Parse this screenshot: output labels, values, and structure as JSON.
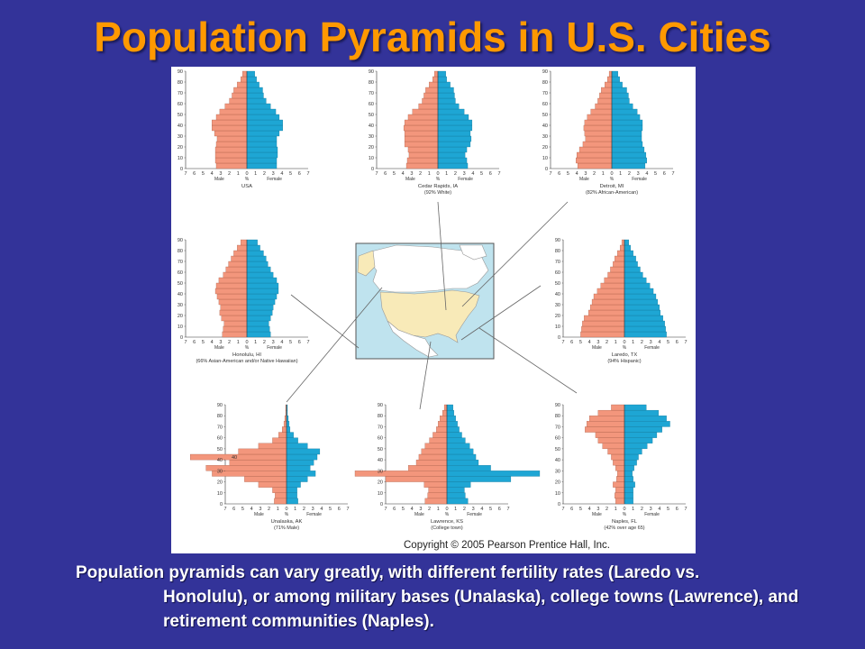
{
  "title": "Population Pyramids in U.S. Cities",
  "caption": {
    "line1": "Population pyramids can vary greatly, with different fertility rates (Laredo vs.",
    "line2": "Honolulu), or among military bases (Unalaska), college towns (Lawrence), and retirement communities (Naples)."
  },
  "figure": {
    "copyright": "Copyright © 2005 Pearson Prentice Hall, Inc.",
    "colors": {
      "male": "#f3967c",
      "female": "#1ea6d4",
      "map_water": "#bfe3ee",
      "map_us": "#f8eab8",
      "map_other": "#ffffff"
    }
  },
  "chart_data": [
    {
      "type": "bar",
      "subtype": "population-pyramid",
      "title": "USA",
      "subtitle": "",
      "xlabel": "%",
      "left_label": "Male",
      "right_label": "Female",
      "x_ticks": [
        "7",
        "6",
        "5",
        "4",
        "3",
        "2",
        "1",
        "0",
        "1",
        "2",
        "3",
        "4",
        "5",
        "6",
        "7"
      ],
      "y_ticks": [
        "0",
        "10",
        "20",
        "30",
        "40",
        "50",
        "60",
        "70",
        "80",
        "90"
      ],
      "ylim": [
        0,
        90
      ],
      "xlim": [
        -7,
        7
      ],
      "categories": [
        "0-4",
        "5-9",
        "10-14",
        "15-19",
        "20-24",
        "25-29",
        "30-34",
        "35-39",
        "40-44",
        "45-49",
        "50-54",
        "55-59",
        "60-64",
        "65-69",
        "70-74",
        "75-79",
        "80-84",
        "85+"
      ],
      "series": [
        {
          "name": "Male",
          "values": [
            3.5,
            3.6,
            3.6,
            3.6,
            3.5,
            3.4,
            3.7,
            4.0,
            4.0,
            3.5,
            3.1,
            2.5,
            2.0,
            1.7,
            1.5,
            1.1,
            0.7,
            0.5
          ]
        },
        {
          "name": "Female",
          "values": [
            3.4,
            3.4,
            3.5,
            3.5,
            3.4,
            3.4,
            3.7,
            4.1,
            4.1,
            3.7,
            3.3,
            2.7,
            2.2,
            1.9,
            1.8,
            1.4,
            1.1,
            0.9
          ]
        }
      ]
    },
    {
      "type": "bar",
      "subtype": "population-pyramid",
      "title": "Cedar Rapids, IA",
      "subtitle": "(92% White)",
      "xlabel": "%",
      "left_label": "Male",
      "right_label": "Female",
      "x_ticks": [
        "7",
        "6",
        "5",
        "4",
        "3",
        "2",
        "1",
        "0",
        "1",
        "2",
        "3",
        "4",
        "5",
        "6",
        "7"
      ],
      "y_ticks": [
        "0",
        "10",
        "20",
        "30",
        "40",
        "50",
        "60",
        "70",
        "80",
        "90"
      ],
      "ylim": [
        0,
        90
      ],
      "xlim": [
        -7,
        7
      ],
      "categories": [
        "0-4",
        "5-9",
        "10-14",
        "15-19",
        "20-24",
        "25-29",
        "30-34",
        "35-39",
        "40-44",
        "45-49",
        "50-54",
        "55-59",
        "60-64",
        "65-69",
        "70-74",
        "75-79",
        "80-84",
        "85+"
      ],
      "series": [
        {
          "name": "Male",
          "values": [
            3.6,
            3.5,
            3.3,
            3.4,
            3.8,
            3.8,
            3.8,
            3.9,
            3.8,
            3.4,
            2.9,
            2.2,
            1.8,
            1.6,
            1.4,
            1.0,
            0.6,
            0.4
          ]
        },
        {
          "name": "Female",
          "values": [
            3.4,
            3.3,
            3.1,
            3.3,
            3.7,
            3.8,
            3.7,
            3.9,
            3.9,
            3.5,
            3.0,
            2.4,
            2.0,
            1.9,
            1.8,
            1.4,
            1.0,
            0.9
          ]
        }
      ]
    },
    {
      "type": "bar",
      "subtype": "population-pyramid",
      "title": "Detroit, MI",
      "subtitle": "(82% African-American)",
      "xlabel": "%",
      "left_label": "Male",
      "right_label": "Female",
      "x_ticks": [
        "7",
        "6",
        "5",
        "4",
        "3",
        "2",
        "1",
        "0",
        "1",
        "2",
        "3",
        "4",
        "5",
        "6",
        "7"
      ],
      "y_ticks": [
        "0",
        "10",
        "20",
        "30",
        "40",
        "50",
        "60",
        "70",
        "80",
        "90"
      ],
      "ylim": [
        0,
        90
      ],
      "xlim": [
        -7,
        7
      ],
      "categories": [
        "0-4",
        "5-9",
        "10-14",
        "15-19",
        "20-24",
        "25-29",
        "30-34",
        "35-39",
        "40-44",
        "45-49",
        "50-54",
        "55-59",
        "60-64",
        "65-69",
        "70-74",
        "75-79",
        "80-84",
        "85+"
      ],
      "series": [
        {
          "name": "Male",
          "values": [
            3.9,
            4.1,
            4.0,
            3.7,
            3.3,
            3.0,
            3.1,
            3.2,
            3.1,
            2.8,
            2.4,
            1.9,
            1.6,
            1.4,
            1.2,
            0.8,
            0.5,
            0.3
          ]
        },
        {
          "name": "Female",
          "values": [
            3.8,
            4.0,
            3.9,
            3.7,
            3.5,
            3.4,
            3.4,
            3.5,
            3.5,
            3.2,
            2.9,
            2.4,
            2.0,
            1.9,
            1.7,
            1.2,
            0.9,
            0.7
          ]
        }
      ]
    },
    {
      "type": "bar",
      "subtype": "population-pyramid",
      "title": "Honolulu, HI",
      "subtitle": "(66% Asian-American and/or Native Hawaiian)",
      "xlabel": "%",
      "left_label": "Male",
      "right_label": "Female",
      "x_ticks": [
        "7",
        "6",
        "5",
        "4",
        "3",
        "2",
        "1",
        "0",
        "1",
        "2",
        "3",
        "4",
        "5",
        "6",
        "7"
      ],
      "y_ticks": [
        "0",
        "10",
        "20",
        "30",
        "40",
        "50",
        "60",
        "70",
        "80",
        "90"
      ],
      "ylim": [
        0,
        90
      ],
      "xlim": [
        -7,
        7
      ],
      "categories": [
        "0-4",
        "5-9",
        "10-14",
        "15-19",
        "20-24",
        "25-29",
        "30-34",
        "35-39",
        "40-44",
        "45-49",
        "50-54",
        "55-59",
        "60-64",
        "65-69",
        "70-74",
        "75-79",
        "80-84",
        "85+"
      ],
      "series": [
        {
          "name": "Male",
          "values": [
            2.8,
            2.7,
            2.6,
            2.9,
            3.1,
            3.0,
            3.2,
            3.4,
            3.6,
            3.5,
            3.2,
            2.7,
            2.4,
            2.1,
            1.8,
            1.5,
            1.1,
            0.7
          ]
        },
        {
          "name": "Female",
          "values": [
            2.7,
            2.6,
            2.5,
            2.7,
            2.9,
            3.0,
            3.2,
            3.4,
            3.6,
            3.6,
            3.4,
            3.0,
            2.7,
            2.4,
            2.2,
            1.9,
            1.5,
            1.2
          ]
        }
      ]
    },
    {
      "type": "bar",
      "subtype": "population-pyramid",
      "title": "Laredo, TX",
      "subtitle": "(94% Hispanic)",
      "xlabel": "%",
      "left_label": "Male",
      "right_label": "Female",
      "x_ticks": [
        "7",
        "6",
        "5",
        "4",
        "3",
        "2",
        "1",
        "0",
        "1",
        "2",
        "3",
        "4",
        "5",
        "6",
        "7"
      ],
      "y_ticks": [
        "0",
        "10",
        "20",
        "30",
        "40",
        "50",
        "60",
        "70",
        "80",
        "90"
      ],
      "ylim": [
        0,
        90
      ],
      "xlim": [
        -7,
        7
      ],
      "categories": [
        "0-4",
        "5-9",
        "10-14",
        "15-19",
        "20-24",
        "25-29",
        "30-34",
        "35-39",
        "40-44",
        "45-49",
        "50-54",
        "55-59",
        "60-64",
        "65-69",
        "70-74",
        "75-79",
        "80-84",
        "85+"
      ],
      "series": [
        {
          "name": "Male",
          "values": [
            5.0,
            4.9,
            4.8,
            4.6,
            4.1,
            3.9,
            3.7,
            3.5,
            3.1,
            2.7,
            2.3,
            1.9,
            1.6,
            1.3,
            1.1,
            0.8,
            0.5,
            0.3
          ]
        },
        {
          "name": "Female",
          "values": [
            4.8,
            4.7,
            4.6,
            4.4,
            4.1,
            4.0,
            3.8,
            3.6,
            3.3,
            2.9,
            2.5,
            2.1,
            1.8,
            1.5,
            1.3,
            1.0,
            0.7,
            0.5
          ]
        }
      ]
    },
    {
      "type": "bar",
      "subtype": "population-pyramid",
      "title": "Unalaska, AK",
      "subtitle": "(71% Male)",
      "annotation": "40",
      "xlabel": "%",
      "left_label": "Male",
      "right_label": "Female",
      "x_ticks": [
        "7",
        "6",
        "5",
        "4",
        "3",
        "2",
        "1",
        "0",
        "1",
        "2",
        "3",
        "4",
        "5",
        "6",
        "7"
      ],
      "y_ticks": [
        "0",
        "10",
        "20",
        "30",
        "40",
        "50",
        "60",
        "70",
        "80",
        "90"
      ],
      "ylim": [
        0,
        90
      ],
      "xlim": [
        -7,
        7
      ],
      "categories": [
        "0-4",
        "5-9",
        "10-14",
        "15-19",
        "20-24",
        "25-29",
        "30-34",
        "35-39",
        "40-44",
        "45-49",
        "50-54",
        "55-59",
        "60-64",
        "65-69",
        "70-74",
        "75-79",
        "80-84",
        "85+"
      ],
      "series": [
        {
          "name": "Male",
          "values": [
            1.4,
            1.3,
            1.6,
            3.2,
            4.8,
            8.5,
            9.2,
            6.5,
            11.0,
            5.5,
            3.2,
            1.6,
            0.9,
            0.5,
            0.3,
            0.2,
            0.1,
            0.1
          ]
        },
        {
          "name": "Female",
          "values": [
            1.3,
            1.2,
            1.2,
            1.6,
            2.4,
            3.3,
            2.7,
            3.1,
            3.5,
            3.8,
            2.4,
            1.3,
            0.8,
            0.4,
            0.3,
            0.2,
            0.1,
            0.1
          ]
        }
      ]
    },
    {
      "type": "bar",
      "subtype": "population-pyramid",
      "title": "Lawrence, KS",
      "subtitle": "(College town)",
      "xlabel": "%",
      "left_label": "Male",
      "right_label": "Female",
      "x_ticks": [
        "7",
        "6",
        "5",
        "4",
        "3",
        "2",
        "1",
        "0",
        "1",
        "2",
        "3",
        "4",
        "5",
        "6",
        "7"
      ],
      "y_ticks": [
        "0",
        "10",
        "20",
        "30",
        "40",
        "50",
        "60",
        "70",
        "80",
        "90"
      ],
      "ylim": [
        0,
        90
      ],
      "xlim": [
        -7,
        7
      ],
      "categories": [
        "0-4",
        "5-9",
        "10-14",
        "15-19",
        "20-24",
        "25-29",
        "30-34",
        "35-39",
        "40-44",
        "45-49",
        "50-54",
        "55-59",
        "60-64",
        "65-69",
        "70-74",
        "75-79",
        "80-84",
        "85+"
      ],
      "series": [
        {
          "name": "Male",
          "values": [
            2.5,
            2.2,
            2.1,
            2.6,
            7.0,
            10.5,
            4.4,
            3.5,
            3.2,
            2.9,
            2.5,
            2.0,
            1.6,
            1.2,
            1.0,
            0.8,
            0.5,
            0.3
          ]
        },
        {
          "name": "Female",
          "values": [
            2.4,
            2.1,
            2.0,
            2.7,
            7.3,
            10.6,
            5.0,
            3.6,
            3.3,
            3.0,
            2.6,
            2.1,
            1.7,
            1.4,
            1.2,
            1.0,
            0.8,
            0.7
          ]
        }
      ]
    },
    {
      "type": "bar",
      "subtype": "population-pyramid",
      "title": "Naples, FL",
      "subtitle": "(42% over age 65)",
      "xlabel": "%",
      "left_label": "Male",
      "right_label": "Female",
      "x_ticks": [
        "7",
        "6",
        "5",
        "4",
        "3",
        "2",
        "1",
        "0",
        "1",
        "2",
        "3",
        "4",
        "5",
        "6",
        "7"
      ],
      "y_ticks": [
        "0",
        "10",
        "20",
        "30",
        "40",
        "50",
        "60",
        "70",
        "80",
        "90"
      ],
      "ylim": [
        0,
        90
      ],
      "xlim": [
        -7,
        7
      ],
      "categories": [
        "0-4",
        "5-9",
        "10-14",
        "15-19",
        "20-24",
        "25-29",
        "30-34",
        "35-39",
        "40-44",
        "45-49",
        "50-54",
        "55-59",
        "60-64",
        "65-69",
        "70-74",
        "75-79",
        "80-84",
        "85+"
      ],
      "series": [
        {
          "name": "Male",
          "values": [
            1.0,
            1.1,
            1.0,
            1.3,
            0.9,
            0.8,
            1.0,
            1.3,
            1.5,
            1.9,
            2.5,
            3.0,
            3.3,
            4.5,
            4.3,
            4.0,
            3.0,
            1.5
          ]
        },
        {
          "name": "Female",
          "values": [
            1.0,
            1.0,
            1.0,
            1.2,
            1.0,
            0.9,
            1.1,
            1.4,
            1.6,
            2.0,
            2.6,
            3.2,
            3.7,
            4.3,
            5.2,
            4.8,
            3.9,
            2.5
          ]
        }
      ]
    }
  ]
}
